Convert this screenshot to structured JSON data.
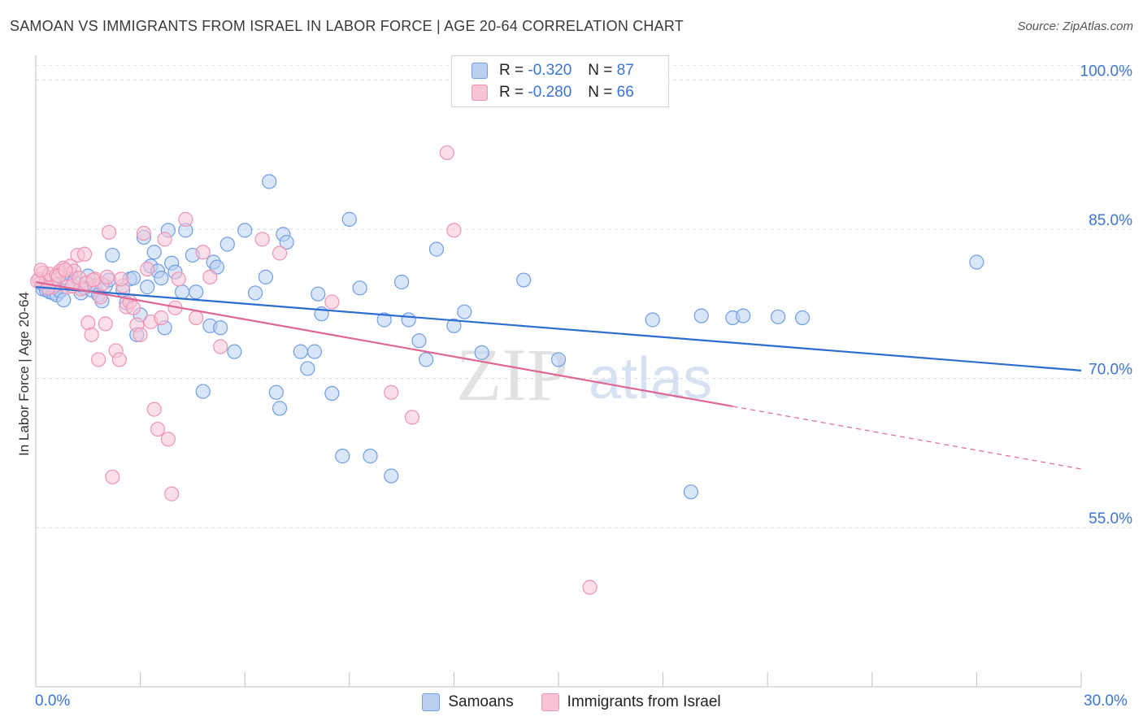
{
  "chart_data": {
    "type": "scatter",
    "title": "SAMOAN VS IMMIGRANTS FROM ISRAEL IN LABOR FORCE | AGE 20-64 CORRELATION CHART",
    "source": "Source: ZipAtlas.com",
    "xlabel": "",
    "ylabel": "In Labor Force | Age 20-64",
    "xlim": [
      0,
      30
    ],
    "ylim": [
      39,
      102.5
    ],
    "x_tick_labels": {
      "left": "0.0%",
      "right": "30.0%"
    },
    "y_ticks": [
      {
        "value": 100,
        "label": "100.0%"
      },
      {
        "value": 85,
        "label": "85.0%"
      },
      {
        "value": 70,
        "label": "70.0%"
      },
      {
        "value": 55,
        "label": "55.0%"
      }
    ],
    "watermark": {
      "zip": "ZIP",
      "atlas": "atlas"
    },
    "legend_stats": [
      {
        "r_label": "R = ",
        "r_value": "-0.320",
        "n_label": "N = ",
        "n_value": "87"
      },
      {
        "r_label": "R = ",
        "r_value": "-0.280",
        "n_label": "N = ",
        "n_value": "66"
      }
    ],
    "series": [
      {
        "name": "Samoans",
        "color": "#6f9ee6",
        "fill": "#b9d0f3",
        "line_color": "#2b6dd0",
        "trend": {
          "x0": 0,
          "y0": 79.2,
          "x1": 30,
          "y1": 70.8
        },
        "points": [
          [
            0.2,
            79.0
          ],
          [
            0.3,
            78.9
          ],
          [
            0.4,
            78.7
          ],
          [
            0.5,
            78.6
          ],
          [
            0.6,
            78.4
          ],
          [
            0.7,
            78.8
          ],
          [
            0.8,
            77.9
          ],
          [
            0.9,
            80.1
          ],
          [
            1.0,
            80.5
          ],
          [
            1.1,
            79.7
          ],
          [
            1.3,
            78.6
          ],
          [
            1.4,
            79.1
          ],
          [
            1.5,
            80.3
          ],
          [
            1.6,
            78.9
          ],
          [
            1.7,
            79.3
          ],
          [
            1.8,
            78.4
          ],
          [
            1.9,
            77.8
          ],
          [
            2.0,
            79.3
          ],
          [
            2.1,
            79.9
          ],
          [
            2.2,
            82.4
          ],
          [
            2.5,
            78.9
          ],
          [
            2.6,
            77.6
          ],
          [
            2.7,
            80.0
          ],
          [
            2.8,
            80.1
          ],
          [
            2.9,
            74.4
          ],
          [
            3.0,
            76.4
          ],
          [
            3.1,
            84.2
          ],
          [
            3.2,
            79.2
          ],
          [
            3.3,
            81.3
          ],
          [
            3.4,
            82.7
          ],
          [
            3.5,
            80.8
          ],
          [
            3.6,
            80.1
          ],
          [
            3.7,
            75.1
          ],
          [
            3.8,
            84.9
          ],
          [
            3.9,
            81.6
          ],
          [
            4.0,
            80.7
          ],
          [
            4.2,
            78.7
          ],
          [
            4.3,
            84.9
          ],
          [
            4.5,
            82.4
          ],
          [
            4.6,
            78.7
          ],
          [
            4.8,
            68.7
          ],
          [
            5.0,
            75.3
          ],
          [
            5.1,
            81.7
          ],
          [
            5.2,
            81.2
          ],
          [
            5.3,
            75.1
          ],
          [
            5.5,
            83.5
          ],
          [
            5.7,
            72.7
          ],
          [
            6.0,
            84.9
          ],
          [
            6.3,
            78.6
          ],
          [
            6.6,
            80.2
          ],
          [
            6.7,
            89.8
          ],
          [
            6.9,
            68.6
          ],
          [
            7.0,
            67.0
          ],
          [
            7.1,
            84.5
          ],
          [
            7.2,
            83.7
          ],
          [
            7.6,
            72.7
          ],
          [
            7.8,
            71.0
          ],
          [
            8.0,
            72.7
          ],
          [
            8.1,
            78.5
          ],
          [
            8.2,
            76.5
          ],
          [
            8.5,
            68.5
          ],
          [
            8.8,
            62.2
          ],
          [
            9.0,
            86.0
          ],
          [
            9.3,
            79.1
          ],
          [
            9.6,
            62.2
          ],
          [
            10.0,
            75.9
          ],
          [
            10.2,
            60.2
          ],
          [
            10.5,
            79.7
          ],
          [
            10.7,
            75.9
          ],
          [
            11.0,
            73.8
          ],
          [
            11.2,
            71.9
          ],
          [
            11.5,
            83.0
          ],
          [
            12.0,
            75.3
          ],
          [
            12.3,
            76.7
          ],
          [
            12.8,
            72.6
          ],
          [
            14.0,
            79.9
          ],
          [
            15.0,
            71.9
          ],
          [
            17.7,
            75.9
          ],
          [
            18.8,
            58.6
          ],
          [
            19.1,
            76.3
          ],
          [
            20.0,
            76.1
          ],
          [
            20.3,
            76.3
          ],
          [
            21.3,
            76.2
          ],
          [
            22.0,
            76.1
          ],
          [
            27.0,
            81.7
          ],
          [
            0.15,
            79.6
          ],
          [
            0.55,
            79.4
          ]
        ]
      },
      {
        "name": "Immigrants from Israel",
        "color": "#ee93b2",
        "fill": "#f7c5d6",
        "line_color": "#e06694",
        "trend": {
          "x0": 0,
          "y0": 79.7,
          "x1": 20,
          "y1": 67.2
        },
        "trend_dashed": {
          "x0": 20,
          "y0": 67.2,
          "x1": 30,
          "y1": 60.9
        },
        "points": [
          [
            0.1,
            80.0
          ],
          [
            0.2,
            80.6
          ],
          [
            0.3,
            79.9
          ],
          [
            0.4,
            80.5
          ],
          [
            0.5,
            79.2
          ],
          [
            0.6,
            80.4
          ],
          [
            0.7,
            80.8
          ],
          [
            0.8,
            81.1
          ],
          [
            0.9,
            79.2
          ],
          [
            1.0,
            81.3
          ],
          [
            1.1,
            80.8
          ],
          [
            1.2,
            82.4
          ],
          [
            1.3,
            79.0
          ],
          [
            1.4,
            82.5
          ],
          [
            1.5,
            75.6
          ],
          [
            1.6,
            74.4
          ],
          [
            1.7,
            80.0
          ],
          [
            1.8,
            71.9
          ],
          [
            1.9,
            79.5
          ],
          [
            2.0,
            75.5
          ],
          [
            2.1,
            84.7
          ],
          [
            2.2,
            60.1
          ],
          [
            2.3,
            72.8
          ],
          [
            2.4,
            71.9
          ],
          [
            2.5,
            79.3
          ],
          [
            2.6,
            77.2
          ],
          [
            2.7,
            77.7
          ],
          [
            2.8,
            77.1
          ],
          [
            2.9,
            75.4
          ],
          [
            3.0,
            74.4
          ],
          [
            3.1,
            84.6
          ],
          [
            3.2,
            81.0
          ],
          [
            3.3,
            75.7
          ],
          [
            3.4,
            66.9
          ],
          [
            3.5,
            64.9
          ],
          [
            3.6,
            76.1
          ],
          [
            3.7,
            84.0
          ],
          [
            3.8,
            63.9
          ],
          [
            3.9,
            58.4
          ],
          [
            4.0,
            77.1
          ],
          [
            4.1,
            80.0
          ],
          [
            4.3,
            86.0
          ],
          [
            4.6,
            76.1
          ],
          [
            4.8,
            82.7
          ],
          [
            5.0,
            80.2
          ],
          [
            5.3,
            73.2
          ],
          [
            6.5,
            84.0
          ],
          [
            7.0,
            82.6
          ],
          [
            8.5,
            77.7
          ],
          [
            10.2,
            68.6
          ],
          [
            10.8,
            66.1
          ],
          [
            11.8,
            92.7
          ],
          [
            12.0,
            84.9
          ],
          [
            15.9,
            49.0
          ],
          [
            0.05,
            79.8
          ],
          [
            0.35,
            79.1
          ],
          [
            0.65,
            80.3
          ],
          [
            0.85,
            80.9
          ],
          [
            1.05,
            79.3
          ],
          [
            1.25,
            80.1
          ],
          [
            1.45,
            79.6
          ],
          [
            1.65,
            79.9
          ],
          [
            1.85,
            78.2
          ],
          [
            2.05,
            80.2
          ],
          [
            2.45,
            80.0
          ],
          [
            0.15,
            80.9
          ]
        ]
      }
    ]
  }
}
